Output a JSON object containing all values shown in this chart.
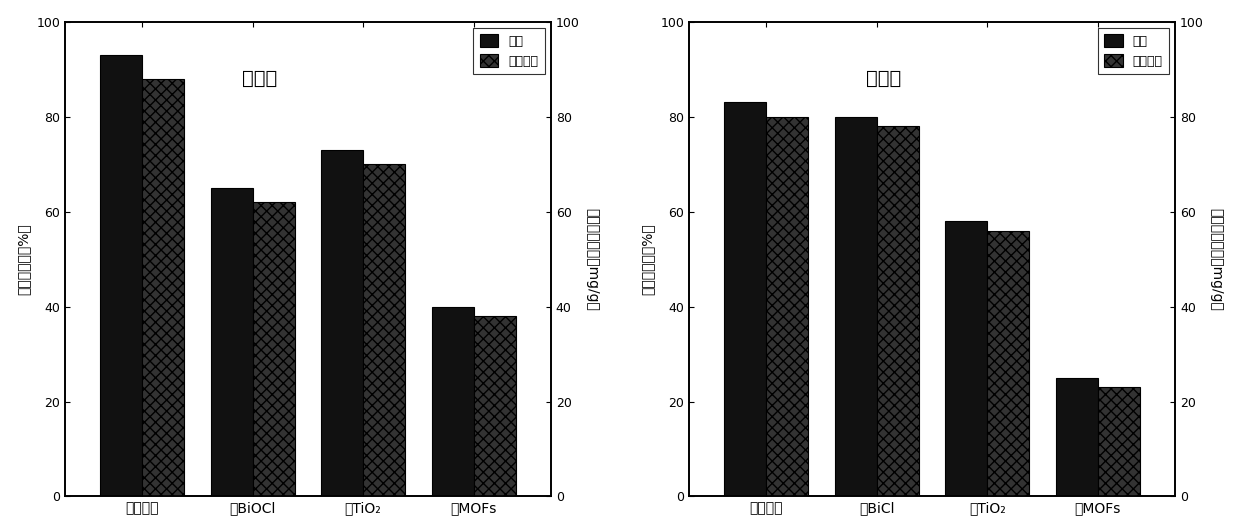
{
  "left": {
    "title": "太阳光",
    "categories": [
      "复合材料",
      "绯BiOCl",
      "绯TiO₂",
      "绯MOFs"
    ],
    "formaldehyde": [
      93,
      65,
      73,
      40
    ],
    "co2": [
      88,
      62,
      70,
      38
    ],
    "ylabel_left": "甲醉去除率（%）",
    "ylabel_right": "二氧化碳增量（mg/g）",
    "ylim": [
      0,
      100
    ],
    "yticks": [
      0,
      20,
      40,
      60,
      80,
      100
    ]
  },
  "right": {
    "title": "可见光",
    "categories": [
      "复合材料",
      "绯BiCl",
      "绯TiO₂",
      "绯MOFs"
    ],
    "formaldehyde": [
      83,
      80,
      58,
      25
    ],
    "co2": [
      80,
      78,
      56,
      23
    ],
    "ylabel_left": "甲醉去除率（%）",
    "ylabel_right": "二氧化碳增量（mg/g）",
    "ylim": [
      0,
      100
    ],
    "yticks": [
      0,
      20,
      40,
      60,
      80,
      100
    ]
  },
  "legend_formaldehyde": "甲醉",
  "legend_co2": "二氧化碳",
  "bar_color_solid": "#111111",
  "bar_color_hatch_face": "#333333",
  "bar_hatch": "xxx",
  "bar_width": 0.38,
  "background_color": "#ffffff",
  "plot_bg": "#ffffff",
  "font_size": 11
}
